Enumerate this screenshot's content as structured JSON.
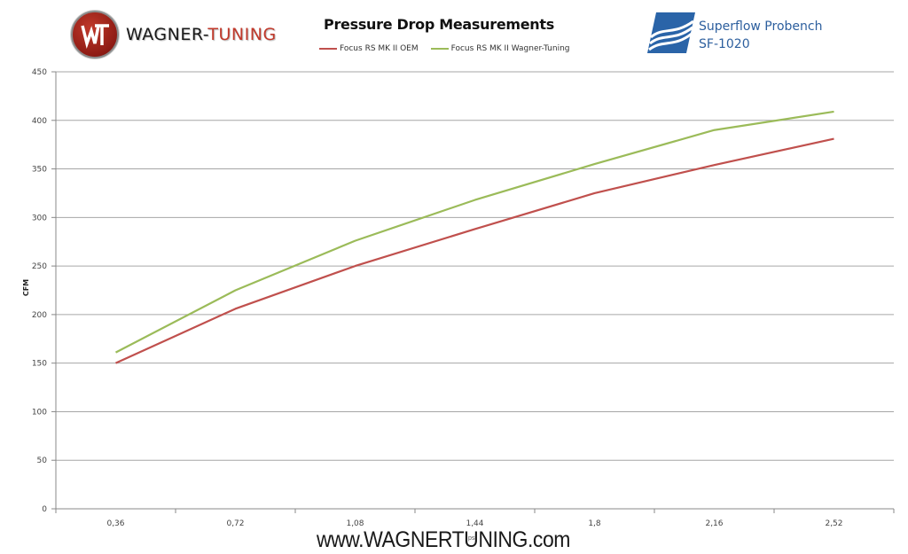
{
  "header": {
    "brand_left": {
      "part1": "WAGNER-",
      "part2": "TUNING",
      "icon": "wt-logo-icon"
    },
    "brand_right": {
      "line1": "Superflow Probench",
      "line2": "SF-1020",
      "icon": "superflow-logo-icon"
    },
    "watermark": "www.WAGNERTUNING.com"
  },
  "chart_data": {
    "type": "line",
    "title": "Pressure Drop Measurements",
    "xlabel": "psi",
    "ylabel": "CFM",
    "categories": [
      "0,36",
      "0,72",
      "1,08",
      "1,44",
      "1,8",
      "2,16",
      "2,52"
    ],
    "series": [
      {
        "name": "Focus RS MK II OEM",
        "color": "#c0504d",
        "values": [
          150,
          206,
          250,
          288,
          325,
          354,
          381
        ]
      },
      {
        "name": "Focus RS MK II Wagner-Tuning",
        "color": "#9bbb59",
        "values": [
          161,
          225,
          276,
          318,
          355,
          390,
          409
        ]
      }
    ],
    "ylim": [
      0,
      450
    ],
    "yticks": [
      0,
      50,
      100,
      150,
      200,
      250,
      300,
      350,
      400,
      450
    ],
    "grid": true,
    "legend_position": "top"
  }
}
